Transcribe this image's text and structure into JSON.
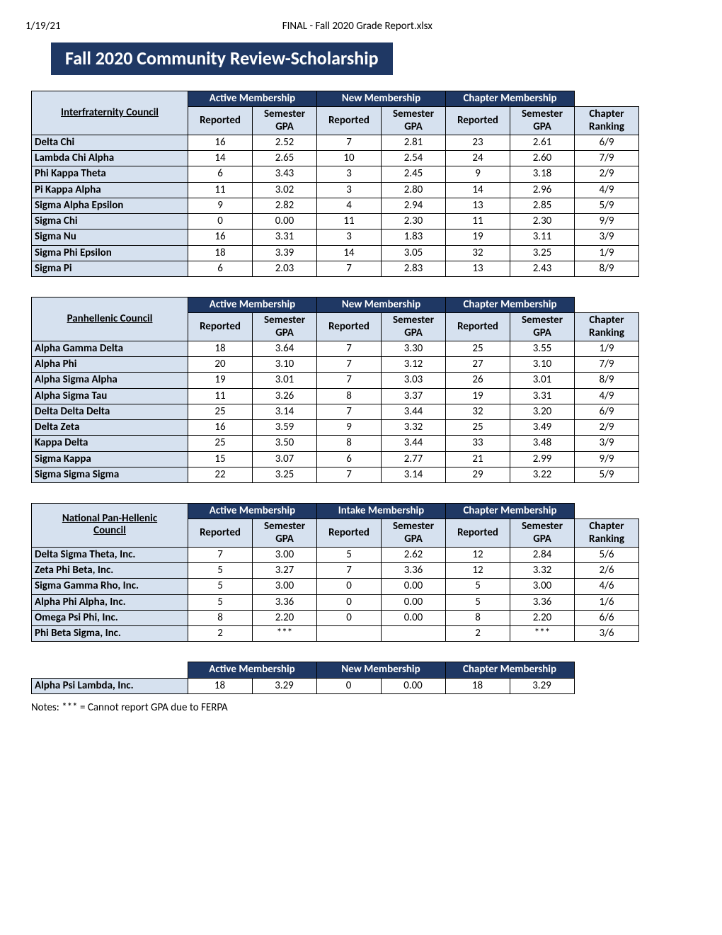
{
  "header": {
    "date": "1/19/21",
    "filename": "FINAL - Fall 2020 Grade Report.xlsx",
    "banner": "Fall 2020 Community Review-Scholarship"
  },
  "colors": {
    "banner_bg": "#1f3864",
    "banner_fg": "#ffffff",
    "cell_bg": "#d6e1ef",
    "border": "#000000"
  },
  "group_labels": {
    "active": "Active Membership",
    "new": "New Membership",
    "intake": "Intake Membership",
    "chapter": "Chapter Membership"
  },
  "sub_labels": {
    "reported": "Reported",
    "gpa": "Semester GPA",
    "ranking": "Chapter Ranking"
  },
  "tables": [
    {
      "corner": "Interfraternity Council",
      "groups": [
        "active",
        "new",
        "chapter"
      ],
      "has_ranking": true,
      "rows": [
        {
          "name": "Delta Chi",
          "v": [
            "16",
            "2.52",
            "7",
            "2.81",
            "23",
            "2.61",
            "6/9"
          ]
        },
        {
          "name": "Lambda Chi Alpha",
          "v": [
            "14",
            "2.65",
            "10",
            "2.54",
            "24",
            "2.60",
            "7/9"
          ]
        },
        {
          "name": "Phi Kappa Theta",
          "v": [
            "6",
            "3.43",
            "3",
            "2.45",
            "9",
            "3.18",
            "2/9"
          ]
        },
        {
          "name": "Pi Kappa Alpha",
          "v": [
            "11",
            "3.02",
            "3",
            "2.80",
            "14",
            "2.96",
            "4/9"
          ]
        },
        {
          "name": "Sigma Alpha Epsilon",
          "v": [
            "9",
            "2.82",
            "4",
            "2.94",
            "13",
            "2.85",
            "5/9"
          ]
        },
        {
          "name": "Sigma Chi",
          "v": [
            "0",
            "0.00",
            "11",
            "2.30",
            "11",
            "2.30",
            "9/9"
          ]
        },
        {
          "name": "Sigma Nu",
          "v": [
            "16",
            "3.31",
            "3",
            "1.83",
            "19",
            "3.11",
            "3/9"
          ]
        },
        {
          "name": "Sigma Phi Epsilon",
          "v": [
            "18",
            "3.39",
            "14",
            "3.05",
            "32",
            "3.25",
            "1/9"
          ]
        },
        {
          "name": "Sigma Pi",
          "v": [
            "6",
            "2.03",
            "7",
            "2.83",
            "13",
            "2.43",
            "8/9"
          ]
        }
      ]
    },
    {
      "corner": "Panhellenic Council",
      "groups": [
        "active",
        "new",
        "chapter"
      ],
      "has_ranking": true,
      "rows": [
        {
          "name": "Alpha Gamma Delta",
          "v": [
            "18",
            "3.64",
            "7",
            "3.30",
            "25",
            "3.55",
            "1/9"
          ]
        },
        {
          "name": "Alpha Phi",
          "v": [
            "20",
            "3.10",
            "7",
            "3.12",
            "27",
            "3.10",
            "7/9"
          ]
        },
        {
          "name": "Alpha Sigma Alpha",
          "v": [
            "19",
            "3.01",
            "7",
            "3.03",
            "26",
            "3.01",
            "8/9"
          ]
        },
        {
          "name": "Alpha Sigma Tau",
          "v": [
            "11",
            "3.26",
            "8",
            "3.37",
            "19",
            "3.31",
            "4/9"
          ]
        },
        {
          "name": "Delta Delta Delta",
          "v": [
            "25",
            "3.14",
            "7",
            "3.44",
            "32",
            "3.20",
            "6/9"
          ]
        },
        {
          "name": "Delta Zeta",
          "v": [
            "16",
            "3.59",
            "9",
            "3.32",
            "25",
            "3.49",
            "2/9"
          ]
        },
        {
          "name": "Kappa Delta",
          "v": [
            "25",
            "3.50",
            "8",
            "3.44",
            "33",
            "3.48",
            "3/9"
          ]
        },
        {
          "name": "Sigma Kappa",
          "v": [
            "15",
            "3.07",
            "6",
            "2.77",
            "21",
            "2.99",
            "9/9"
          ]
        },
        {
          "name": "Sigma Sigma Sigma",
          "v": [
            "22",
            "3.25",
            "7",
            "3.14",
            "29",
            "3.22",
            "5/9"
          ]
        }
      ]
    },
    {
      "corner": "National Pan-Hellenic Council",
      "groups": [
        "active",
        "intake",
        "chapter"
      ],
      "has_ranking": true,
      "rows": [
        {
          "name": "Delta Sigma Theta, Inc.",
          "v": [
            "7",
            "3.00",
            "5",
            "2.62",
            "12",
            "2.84",
            "5/6"
          ]
        },
        {
          "name": "Zeta Phi Beta, Inc.",
          "v": [
            "5",
            "3.27",
            "7",
            "3.36",
            "12",
            "3.32",
            "2/6"
          ]
        },
        {
          "name": "Sigma Gamma Rho, Inc.",
          "v": [
            "5",
            "3.00",
            "0",
            "0.00",
            "5",
            "3.00",
            "4/6"
          ]
        },
        {
          "name": "Alpha Phi Alpha, Inc.",
          "v": [
            "5",
            "3.36",
            "0",
            "0.00",
            "5",
            "3.36",
            "1/6"
          ]
        },
        {
          "name": "Omega Psi Phi, Inc.",
          "v": [
            "8",
            "2.20",
            "0",
            "0.00",
            "8",
            "2.20",
            "6/6"
          ]
        },
        {
          "name": "Phi Beta Sigma, Inc.",
          "v": [
            "2",
            "***",
            "",
            "",
            "2",
            "***",
            "3/6"
          ]
        }
      ]
    },
    {
      "corner": "Alpha Psi Lambda, Inc.",
      "groups": [
        "active",
        "new",
        "chapter"
      ],
      "has_ranking": false,
      "single_row": true,
      "rows": [
        {
          "name": "Alpha Psi Lambda, Inc.",
          "v": [
            "18",
            "3.29",
            "0",
            "0.00",
            "18",
            "3.29"
          ]
        }
      ]
    }
  ],
  "notes": "Notes: *** = Cannot report GPA due to FERPA"
}
